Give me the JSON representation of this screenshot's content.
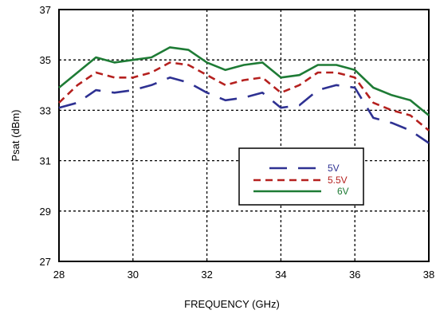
{
  "chart_data": {
    "type": "line",
    "xlabel": "FREQUENCY (GHz)",
    "ylabel": "Psat (dBm)",
    "xlim": [
      28,
      38
    ],
    "ylim": [
      27,
      37
    ],
    "xticks": [
      "28",
      "30",
      "32",
      "34",
      "36",
      "38"
    ],
    "yticks": [
      "27",
      "29",
      "31",
      "33",
      "35",
      "37"
    ],
    "grid": true,
    "legend": "center-right",
    "series": [
      {
        "name": "5V",
        "color": "#2e3192",
        "dash": "dashed",
        "x": [
          28,
          28.5,
          29,
          29.5,
          30,
          30.5,
          31,
          31.5,
          32,
          32.5,
          33,
          33.5,
          34,
          34.5,
          35,
          35.5,
          36,
          36.5,
          37,
          37.5,
          38
        ],
        "y": [
          33.1,
          33.3,
          33.8,
          33.7,
          33.8,
          34.0,
          34.3,
          34.1,
          33.7,
          33.4,
          33.5,
          33.7,
          33.1,
          33.2,
          33.8,
          34.0,
          33.9,
          32.7,
          32.5,
          32.2,
          31.7
        ]
      },
      {
        "name": "5.5V",
        "color": "#b5201e",
        "dash": "short-dashed",
        "x": [
          28,
          28.5,
          29,
          29.5,
          30,
          30.5,
          31,
          31.5,
          32,
          32.5,
          33,
          33.5,
          34,
          34.5,
          35,
          35.5,
          36,
          36.5,
          37,
          37.5,
          38
        ],
        "y": [
          33.3,
          34.0,
          34.5,
          34.3,
          34.3,
          34.5,
          34.9,
          34.8,
          34.4,
          34.0,
          34.2,
          34.3,
          33.7,
          34.0,
          34.5,
          34.5,
          34.3,
          33.3,
          33.0,
          32.8,
          32.2
        ]
      },
      {
        "name": "6V",
        "color": "#1e7b35",
        "dash": "solid",
        "x": [
          28,
          28.5,
          29,
          29.5,
          30,
          30.5,
          31,
          31.5,
          32,
          32.5,
          33,
          33.5,
          34,
          34.5,
          35,
          35.5,
          36,
          36.5,
          37,
          37.5,
          38
        ],
        "y": [
          33.9,
          34.5,
          35.1,
          34.9,
          35.0,
          35.1,
          35.5,
          35.4,
          34.9,
          34.6,
          34.8,
          34.9,
          34.3,
          34.4,
          34.8,
          34.8,
          34.6,
          33.9,
          33.6,
          33.4,
          32.8
        ]
      }
    ]
  }
}
